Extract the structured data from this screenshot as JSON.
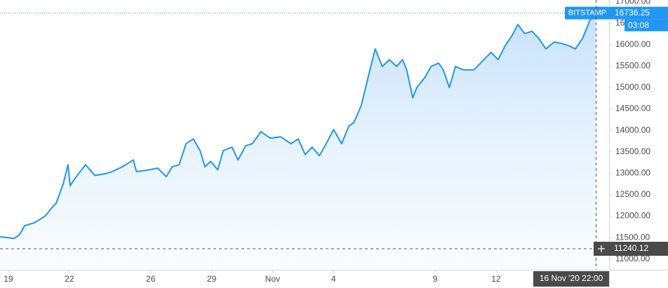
{
  "chart_data": {
    "type": "area",
    "color": "#2196f3",
    "x": [
      -0.41,
      0.28,
      0.55,
      0.8,
      1.3,
      1.83,
      2.18,
      2.35,
      2.7,
      2.93,
      3.04,
      3.38,
      3.8,
      4.25,
      4.77,
      5.1,
      5.6,
      6.15,
      6.3,
      6.8,
      7.35,
      7.77,
      8.05,
      8.4,
      8.74,
      9.1,
      9.43,
      9.67,
      9.95,
      10.3,
      10.57,
      11.0,
      11.3,
      11.67,
      12.0,
      12.43,
      12.88,
      13.4,
      13.9,
      14.26,
      14.6,
      14.95,
      15.3,
      15.64,
      16.0,
      16.4,
      16.75,
      17.0,
      17.37,
      17.7,
      18.05,
      18.4,
      18.75,
      19.1,
      19.4,
      19.6,
      19.9,
      20.1,
      20.5,
      20.8,
      21.17,
      21.4,
      21.7,
      22.0,
      22.4,
      22.9,
      23.4,
      23.75,
      24.1,
      24.45,
      24.8,
      25.07,
      25.4,
      25.77,
      26.1,
      26.45,
      26.86,
      27.2,
      27.55,
      27.9,
      28.25,
      28.6,
      28.9
    ],
    "values": [
      11520,
      11480,
      11570,
      11780,
      11850,
      12010,
      12220,
      12300,
      12760,
      13200,
      12710,
      12950,
      13200,
      12950,
      12990,
      13040,
      13150,
      13310,
      13040,
      13070,
      13120,
      12920,
      13150,
      13200,
      13690,
      13800,
      13530,
      13150,
      13280,
      13080,
      13530,
      13610,
      13310,
      13640,
      13690,
      13970,
      13820,
      13850,
      13690,
      13800,
      13440,
      13610,
      13410,
      13690,
      14020,
      13690,
      14100,
      14180,
      14590,
      15240,
      15900,
      15490,
      15650,
      15490,
      15650,
      15410,
      14760,
      15000,
      15240,
      15490,
      15570,
      15410,
      15000,
      15490,
      15410,
      15410,
      15650,
      15820,
      15650,
      15980,
      16220,
      16470,
      16260,
      16310,
      16140,
      15900,
      16060,
      16030,
      15980,
      15900,
      16140,
      16550,
      16760
    ],
    "xlim": [
      -0.414,
      29.558
    ],
    "ylim": [
      10750,
      17000
    ],
    "xticks": [
      {
        "value": 0,
        "label": "19"
      },
      {
        "value": 3,
        "label": "22"
      },
      {
        "value": 7,
        "label": "26"
      },
      {
        "value": 10,
        "label": "29"
      },
      {
        "value": 13,
        "label": "Nov"
      },
      {
        "value": 16,
        "label": "4"
      },
      {
        "value": 21,
        "label": "9"
      },
      {
        "value": 24,
        "label": "12"
      }
    ],
    "yticks": [
      {
        "value": 11000,
        "label": "11000.00"
      },
      {
        "value": 11500,
        "label": "11500.00"
      },
      {
        "value": 12000,
        "label": "12000.00"
      },
      {
        "value": 12500,
        "label": "12500.00"
      },
      {
        "value": 13000,
        "label": "13000.00"
      },
      {
        "value": 13500,
        "label": "13500.00"
      },
      {
        "value": 14000,
        "label": "14000.00"
      },
      {
        "value": 14500,
        "label": "14500.00"
      },
      {
        "value": 15000,
        "label": "15000.00"
      },
      {
        "value": 15500,
        "label": "15500.00"
      },
      {
        "value": 16000,
        "label": "16000.00"
      },
      {
        "value": 16500,
        "label": "16500.00"
      },
      {
        "value": 17000,
        "label": "17000.00"
      }
    ],
    "exchange": "BITSTAMP",
    "last_value": 16736.25,
    "countdown": "03:08",
    "crosshair": {
      "x": 28.92,
      "x_label": "16 Nov '20 22:00",
      "y": 11240.12
    }
  }
}
